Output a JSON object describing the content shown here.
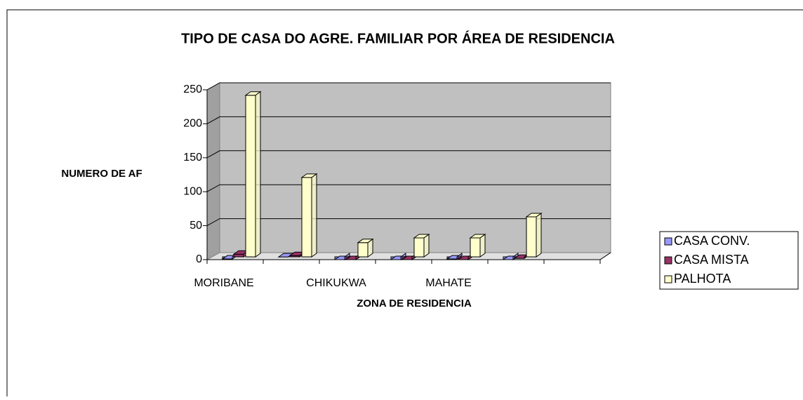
{
  "chart_data": {
    "type": "bar3d",
    "title": "TIPO DE CASA DO AGRE. FAMILIAR POR ÁREA DE RESIDENCIA",
    "y_label": "NUMERO DE AF",
    "x_label": "ZONA DE RESIDENCIA",
    "categories": [
      "MORIBANE",
      null,
      "CHIKUKWA",
      null,
      "MAHATE",
      null,
      null
    ],
    "series": [
      {
        "name": "CASA CONV.",
        "color": "#9999ff",
        "values": [
          1,
          4,
          0,
          0,
          1,
          0,
          null
        ]
      },
      {
        "name": "CASA MISTA",
        "color": "#993366",
        "values": [
          8,
          6,
          0,
          0,
          0,
          2,
          null
        ]
      },
      {
        "name": "PALHOTA",
        "color": "#ffffcc",
        "values": [
          242,
          121,
          25,
          32,
          32,
          63,
          null
        ]
      }
    ],
    "ylim": [
      0,
      250
    ],
    "yticks": [
      0,
      50,
      100,
      150,
      200,
      250
    ],
    "grid": true,
    "legend": "right"
  }
}
